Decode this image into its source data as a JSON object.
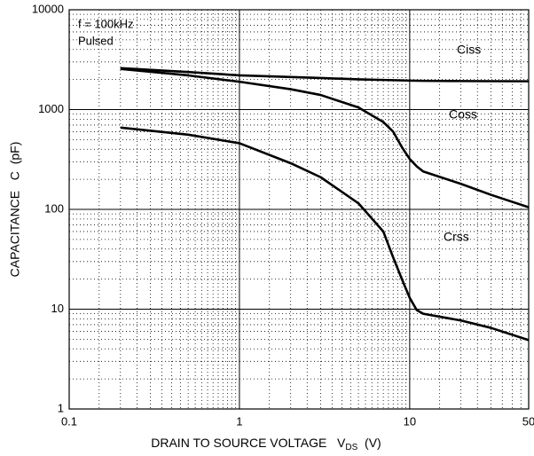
{
  "chart_data": {
    "type": "line",
    "log_x": true,
    "log_y": true,
    "grid": true,
    "minor_grid": true,
    "x_label": "DRAIN TO SOURCE VOLTAGE   V",
    "x_label_sub": "DS",
    "x_label_unit": "  (V)",
    "y_label": "CAPACITANCE   C  (pF)",
    "annotations": [
      "f = 100kHz",
      "Pulsed"
    ],
    "x": [
      0.2,
      0.5,
      1,
      2,
      3,
      5,
      7,
      8,
      9,
      10,
      11,
      12,
      20,
      30,
      50
    ],
    "series": [
      {
        "name": "Ciss",
        "color": "#000000",
        "values": [
          2600,
          2380,
          2200,
          2120,
          2070,
          2010,
          1980,
          1970,
          1960,
          1950,
          1945,
          1940,
          1930,
          1925,
          1920
        ]
      },
      {
        "name": "Coss",
        "color": "#000000",
        "values": [
          2550,
          2200,
          1900,
          1600,
          1400,
          1050,
          750,
          600,
          420,
          320,
          270,
          240,
          180,
          140,
          105
        ]
      },
      {
        "name": "Crss",
        "color": "#000000",
        "values": [
          660,
          560,
          460,
          290,
          210,
          115,
          60,
          33,
          20,
          13,
          9.8,
          9,
          7.7,
          6.5,
          4.9
        ]
      }
    ],
    "xlim": [
      0.1,
      50
    ],
    "xticks": [
      0.1,
      1,
      10,
      50
    ],
    "ylim": [
      1,
      10000
    ],
    "yticks": [
      1,
      10,
      100,
      1000,
      10000
    ]
  }
}
